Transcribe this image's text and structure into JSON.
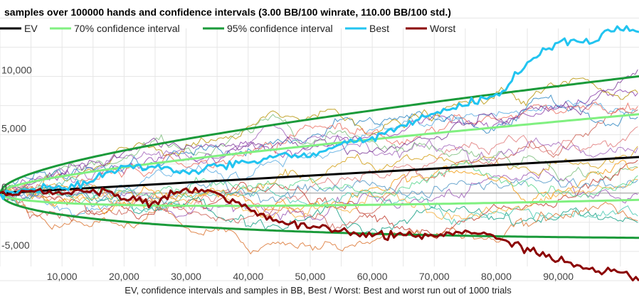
{
  "chart_data": {
    "type": "line",
    "title": "samples over 100000 hands and confidence intervals (3.00 BB/100 winrate, 110.00 BB/100 std.)",
    "xlabel": "EV, confidence intervals and samples in BB, Best / Worst: Best and worst run out of 1000 trials",
    "ylabel": "",
    "xlim": [
      0,
      103000
    ],
    "ylim": [
      -7500,
      13500
    ],
    "x_ticks": [
      10000,
      20000,
      30000,
      40000,
      50000,
      60000,
      70000,
      80000,
      90000
    ],
    "x_tick_labels": [
      "10,000",
      "20,000",
      "30,000",
      "40,000",
      "50,000",
      "60,000",
      "70,000",
      "80,000",
      "90,000"
    ],
    "y_ticks": [
      10000,
      5000,
      0,
      -5000
    ],
    "y_tick_labels": [
      "10,000",
      "5,000",
      "0",
      "-5,000"
    ],
    "grid": true,
    "legend_position": "top",
    "winrate_bb_per_100": 3.0,
    "std_bb_per_100": 110.0,
    "series": [
      {
        "name": "EV",
        "color": "#000000",
        "kind": "ev"
      },
      {
        "name": "70% confidence interval",
        "color": "#80f080",
        "kind": "ci",
        "z": 1.04
      },
      {
        "name": "95% confidence interval",
        "color": "#1a9a3a",
        "kind": "ci",
        "z": 1.96
      },
      {
        "name": "Best",
        "color": "#22c4f0",
        "kind": "sample",
        "x": [
          0,
          5000,
          10000,
          15000,
          20000,
          25000,
          30000,
          35000,
          40000,
          45000,
          50000,
          55000,
          60000,
          65000,
          70000,
          75000,
          80000,
          82000,
          85000,
          88000,
          90000,
          93000,
          96000,
          98000,
          100000,
          103000
        ],
        "y": [
          0,
          300,
          400,
          1000,
          2300,
          2200,
          1800,
          2300,
          2600,
          3300,
          3100,
          4200,
          4800,
          5800,
          6800,
          7500,
          8500,
          9300,
          11200,
          12300,
          12900,
          13000,
          13000,
          14000,
          14000,
          13800
        ]
      },
      {
        "name": "Worst",
        "color": "#8b0000",
        "kind": "sample",
        "x": [
          0,
          5000,
          10000,
          15000,
          18000,
          20000,
          25000,
          30000,
          35000,
          40000,
          45000,
          50000,
          55000,
          60000,
          65000,
          70000,
          75000,
          80000,
          85000,
          90000,
          95000,
          100000,
          103000
        ],
        "y": [
          0,
          200,
          -100,
          300,
          100,
          -500,
          -700,
          400,
          0,
          -1300,
          -2500,
          -3000,
          -3200,
          -3700,
          -3600,
          -3700,
          -3200,
          -3900,
          -4700,
          -5800,
          -6500,
          -6800,
          -7500
        ]
      }
    ],
    "background_samples": 20
  }
}
